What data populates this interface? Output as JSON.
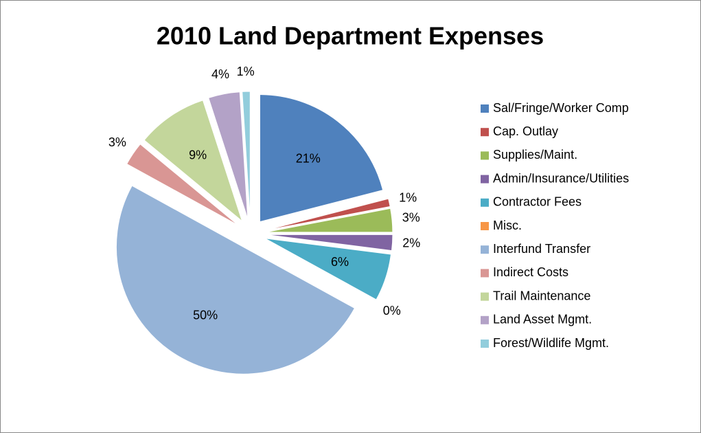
{
  "chart_data": {
    "type": "pie",
    "title": "2010 Land Department Expenses",
    "categories": [
      "Sal/Fringe/Worker Comp",
      "Cap. Outlay",
      "Supplies/Maint.",
      "Admin/Insurance/Utilities",
      "Contractor Fees",
      "Misc.",
      "Interfund Transfer",
      "Indirect Costs",
      "Trail Maintenance",
      "Land Asset Mgmt.",
      "Forest/Wildlife Mgmt."
    ],
    "values": [
      21,
      1,
      3,
      2,
      6,
      0,
      50,
      3,
      9,
      4,
      1
    ],
    "value_labels": [
      "21%",
      "1%",
      "3%",
      "2%",
      "6%",
      "0%",
      "50%",
      "3%",
      "9%",
      "4%",
      "1%"
    ],
    "colors": [
      "#4f81bd",
      "#c0504d",
      "#9bbb59",
      "#8064a2",
      "#4bacc6",
      "#f79646",
      "#95b3d7",
      "#d99694",
      "#c3d69b",
      "#b3a2c7",
      "#92cddc"
    ],
    "legend": "right"
  }
}
